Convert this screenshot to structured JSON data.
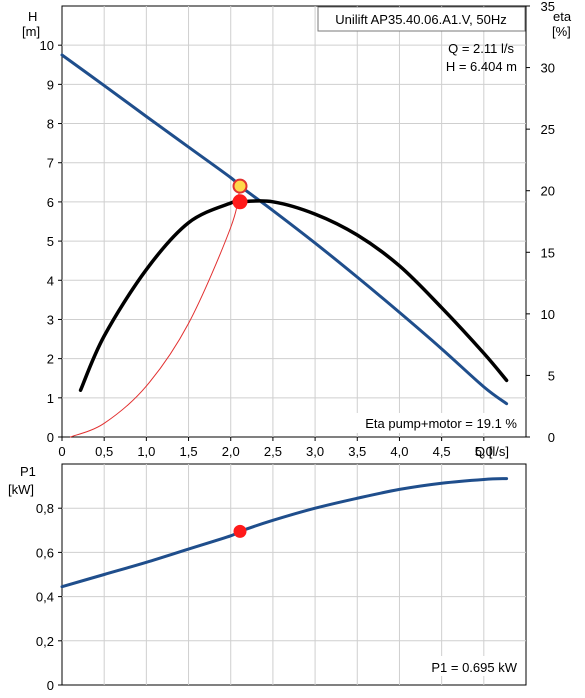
{
  "top_panel": {
    "title": "Unilift AP35.40.06.A1.V, 50Hz",
    "left_axis_label": "H",
    "left_axis_unit": "[m]",
    "right_axis_label": "eta",
    "right_axis_unit": "[%]",
    "x_axis_label": "Q [l/s]",
    "duty_q": "Q = 2.11 l/s",
    "duty_h": "H = 6.404 m",
    "eta_note": "Eta pump+motor = 19.1 %"
  },
  "bottom_panel": {
    "left_axis_label": "P1",
    "left_axis_unit": "[kW]",
    "power_note": "P1 = 0.695 kW"
  },
  "chart_data": [
    {
      "type": "line",
      "title": "Unilift AP35.40.06.A1.V, 50Hz",
      "xlabel": "Q [l/s]",
      "ylabel": "H [m]",
      "y2label": "eta [%]",
      "xlim": [
        0,
        5.5
      ],
      "ylim": [
        0,
        11
      ],
      "y2lim": [
        0,
        35
      ],
      "x_ticks": [
        "0",
        "0,5",
        "1,0",
        "1,5",
        "2,0",
        "2,5",
        "3,0",
        "3,5",
        "4,0",
        "4,5",
        "5,0"
      ],
      "y_ticks": [
        "0",
        "1",
        "2",
        "3",
        "4",
        "5",
        "6",
        "7",
        "8",
        "9",
        "10"
      ],
      "y2_ticks": [
        "0",
        "5",
        "10",
        "15",
        "20",
        "25",
        "30",
        "35"
      ],
      "grid": true,
      "series": [
        {
          "axis": "left",
          "color": "#1f4e8c",
          "x": [
            0,
            0.5,
            1.0,
            1.5,
            2.0,
            2.11,
            2.5,
            3.0,
            3.5,
            4.0,
            4.5,
            5.0,
            5.27
          ],
          "values": [
            9.75,
            8.97,
            8.18,
            7.4,
            6.62,
            6.404,
            5.78,
            4.95,
            4.08,
            3.18,
            2.25,
            1.28,
            0.85
          ]
        },
        {
          "axis": "right",
          "color": "#000000",
          "x": [
            0.22,
            0.5,
            1.0,
            1.5,
            2.0,
            2.11,
            2.5,
            3.0,
            3.5,
            4.0,
            4.5,
            5.0,
            5.27
          ],
          "values": [
            3.8,
            8.2,
            13.6,
            17.4,
            19.0,
            19.1,
            19.1,
            18.1,
            16.4,
            13.9,
            10.5,
            6.8,
            4.6
          ]
        },
        {
          "axis": "left",
          "color": "#e23030",
          "x": [
            0.1,
            0.5,
            1.0,
            1.5,
            2.0,
            2.11
          ],
          "values": [
            0.0,
            0.35,
            1.3,
            2.9,
            5.35,
            6.404
          ]
        }
      ],
      "points": [
        {
          "x": 2.11,
          "y": 6.404,
          "axis": "left",
          "fill": "#ffd84a",
          "stroke": "#e23030"
        },
        {
          "x": 2.11,
          "y": 19.1,
          "axis": "right",
          "fill": "#ff1a1a",
          "stroke": "#ff1a1a"
        }
      ]
    },
    {
      "type": "line",
      "ylabel": "P1 [kW]",
      "xlim": [
        0,
        5.5
      ],
      "ylim": [
        0,
        1.0
      ],
      "y_ticks": [
        "0",
        "0,2",
        "0,4",
        "0,6",
        "0,8"
      ],
      "grid": true,
      "series": [
        {
          "color": "#1f4e8c",
          "x": [
            0,
            0.5,
            1.0,
            1.5,
            2.0,
            2.11,
            2.5,
            3.0,
            3.5,
            4.0,
            4.5,
            5.0,
            5.27
          ],
          "values": [
            0.445,
            0.5,
            0.555,
            0.615,
            0.675,
            0.695,
            0.745,
            0.8,
            0.845,
            0.885,
            0.913,
            0.93,
            0.934
          ]
        }
      ],
      "points": [
        {
          "x": 2.11,
          "y": 0.695,
          "fill": "#ff1a1a",
          "stroke": "#ff1a1a"
        }
      ]
    }
  ]
}
